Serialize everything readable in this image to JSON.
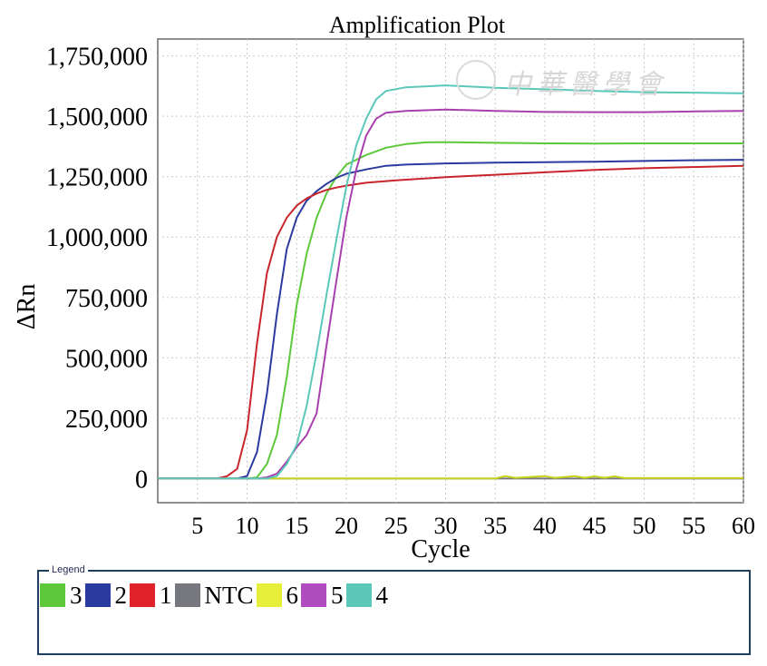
{
  "chart_data": {
    "type": "line",
    "title": "Amplification Plot",
    "xlabel": "Cycle",
    "ylabel": "ΔRn",
    "xlim": [
      1,
      60
    ],
    "ylim": [
      -100000,
      1820000
    ],
    "x_ticks": [
      5,
      10,
      15,
      20,
      25,
      30,
      35,
      40,
      45,
      50,
      55,
      60
    ],
    "y_ticks": [
      0,
      250000,
      500000,
      750000,
      1000000,
      1250000,
      1500000,
      1750000
    ],
    "y_tick_labels": [
      "0",
      "250,000",
      "500,000",
      "750,000",
      "1,000,000",
      "1,250,000",
      "1,500,000",
      "1,750,000"
    ],
    "grid": true,
    "legend_placement": "bottom",
    "series": [
      {
        "name": "3",
        "color": "#5cc83a",
        "points": [
          [
            1,
            0
          ],
          [
            7,
            0
          ],
          [
            10,
            0
          ],
          [
            11,
            5000
          ],
          [
            12,
            60000
          ],
          [
            13,
            180000
          ],
          [
            14,
            420000
          ],
          [
            15,
            720000
          ],
          [
            16,
            930000
          ],
          [
            17,
            1080000
          ],
          [
            18,
            1180000
          ],
          [
            19,
            1250000
          ],
          [
            20,
            1300000
          ],
          [
            22,
            1340000
          ],
          [
            24,
            1370000
          ],
          [
            26,
            1385000
          ],
          [
            28,
            1392000
          ],
          [
            30,
            1393000
          ],
          [
            35,
            1390000
          ],
          [
            40,
            1388000
          ],
          [
            45,
            1387000
          ],
          [
            50,
            1388000
          ],
          [
            55,
            1388000
          ],
          [
            60,
            1388000
          ]
        ]
      },
      {
        "name": "2",
        "color": "#2a3a9e",
        "points": [
          [
            1,
            0
          ],
          [
            7,
            0
          ],
          [
            9,
            0
          ],
          [
            10,
            10000
          ],
          [
            11,
            110000
          ],
          [
            12,
            350000
          ],
          [
            13,
            680000
          ],
          [
            14,
            950000
          ],
          [
            15,
            1080000
          ],
          [
            16,
            1150000
          ],
          [
            17,
            1190000
          ],
          [
            18,
            1220000
          ],
          [
            19,
            1245000
          ],
          [
            20,
            1262000
          ],
          [
            22,
            1280000
          ],
          [
            24,
            1295000
          ],
          [
            26,
            1300000
          ],
          [
            30,
            1305000
          ],
          [
            35,
            1308000
          ],
          [
            40,
            1310000
          ],
          [
            45,
            1312000
          ],
          [
            50,
            1315000
          ],
          [
            55,
            1318000
          ],
          [
            60,
            1320000
          ]
        ]
      },
      {
        "name": "1",
        "color": "#c8262c",
        "points": [
          [
            1,
            0
          ],
          [
            7,
            0
          ],
          [
            8,
            10000
          ],
          [
            9,
            40000
          ],
          [
            10,
            200000
          ],
          [
            11,
            560000
          ],
          [
            12,
            850000
          ],
          [
            13,
            1000000
          ],
          [
            14,
            1080000
          ],
          [
            15,
            1130000
          ],
          [
            16,
            1160000
          ],
          [
            17,
            1180000
          ],
          [
            18,
            1195000
          ],
          [
            19,
            1205000
          ],
          [
            20,
            1213000
          ],
          [
            22,
            1225000
          ],
          [
            25,
            1235000
          ],
          [
            30,
            1248000
          ],
          [
            35,
            1258000
          ],
          [
            40,
            1268000
          ],
          [
            45,
            1278000
          ],
          [
            50,
            1285000
          ],
          [
            55,
            1290000
          ],
          [
            60,
            1295000
          ]
        ]
      },
      {
        "name": "NTC",
        "color": "#777780",
        "points": [
          [
            1,
            0
          ],
          [
            60,
            0
          ]
        ]
      },
      {
        "name": "6",
        "color": "#c8d41a",
        "points": [
          [
            1,
            0
          ],
          [
            35,
            0
          ],
          [
            36,
            10000
          ],
          [
            37,
            3000
          ],
          [
            40,
            10000
          ],
          [
            41,
            3000
          ],
          [
            43,
            10000
          ],
          [
            44,
            3000
          ],
          [
            45,
            9000
          ],
          [
            46,
            3000
          ],
          [
            47,
            9000
          ],
          [
            48,
            2000
          ],
          [
            60,
            2000
          ]
        ]
      },
      {
        "name": "5",
        "color": "#a83fae",
        "points": [
          [
            1,
            0
          ],
          [
            11,
            0
          ],
          [
            12,
            5000
          ],
          [
            13,
            20000
          ],
          [
            14,
            70000
          ],
          [
            15,
            130000
          ],
          [
            16,
            180000
          ],
          [
            17,
            270000
          ],
          [
            18,
            550000
          ],
          [
            19,
            820000
          ],
          [
            20,
            1080000
          ],
          [
            21,
            1280000
          ],
          [
            22,
            1420000
          ],
          [
            23,
            1490000
          ],
          [
            24,
            1515000
          ],
          [
            26,
            1522000
          ],
          [
            30,
            1528000
          ],
          [
            35,
            1522000
          ],
          [
            40,
            1518000
          ],
          [
            45,
            1517000
          ],
          [
            50,
            1517000
          ],
          [
            55,
            1520000
          ],
          [
            60,
            1522000
          ]
        ]
      },
      {
        "name": "4",
        "color": "#5bc8b9",
        "points": [
          [
            1,
            0
          ],
          [
            12,
            0
          ],
          [
            13,
            10000
          ],
          [
            14,
            60000
          ],
          [
            15,
            140000
          ],
          [
            16,
            300000
          ],
          [
            17,
            520000
          ],
          [
            18,
            760000
          ],
          [
            19,
            990000
          ],
          [
            20,
            1210000
          ],
          [
            21,
            1380000
          ],
          [
            22,
            1490000
          ],
          [
            23,
            1570000
          ],
          [
            24,
            1605000
          ],
          [
            26,
            1620000
          ],
          [
            30,
            1628000
          ],
          [
            35,
            1618000
          ],
          [
            40,
            1612000
          ],
          [
            45,
            1605000
          ],
          [
            50,
            1600000
          ],
          [
            55,
            1598000
          ],
          [
            60,
            1595000
          ]
        ]
      }
    ]
  },
  "legend": {
    "caption": "Legend",
    "items": [
      {
        "label": "3",
        "color": "#5cc83a"
      },
      {
        "label": "2",
        "color": "#2a3a9e"
      },
      {
        "label": "1",
        "color": "#e0222b"
      },
      {
        "label": "NTC",
        "color": "#777780"
      },
      {
        "label": "6",
        "color": "#e6ee3a"
      },
      {
        "label": "5",
        "color": "#b04cc0"
      },
      {
        "label": "4",
        "color": "#5bc8b9"
      }
    ]
  },
  "watermark": "中華醫學會"
}
